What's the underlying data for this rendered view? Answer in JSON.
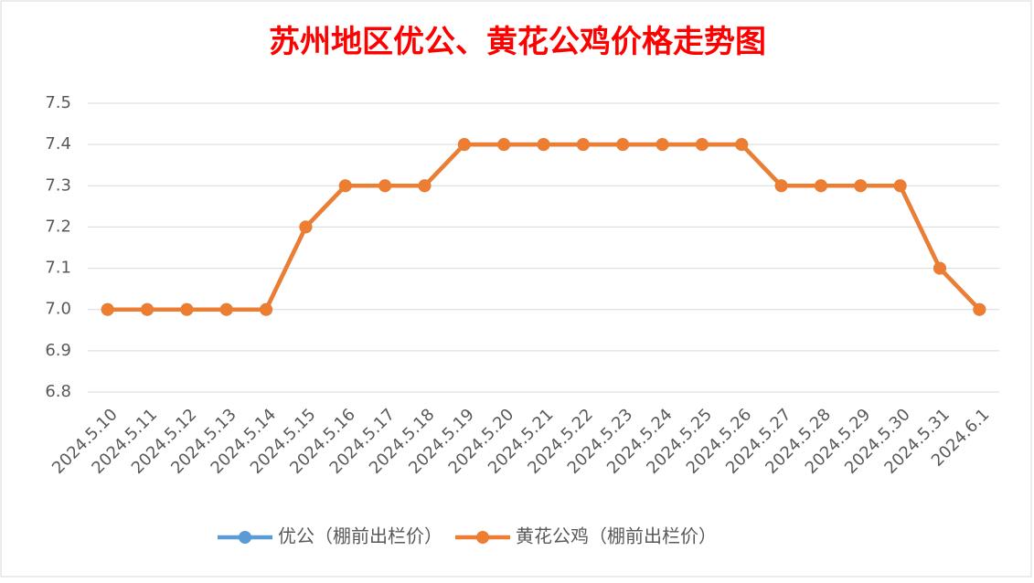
{
  "chart_data": {
    "type": "line",
    "title": "苏州地区优公、黄花公鸡价格走势图",
    "categories": [
      "2024.5.10",
      "2024.5.11",
      "2024.5.12",
      "2024.5.13",
      "2024.5.14",
      "2024.5.15",
      "2024.5.16",
      "2024.5.17",
      "2024.5.18",
      "2024.5.19",
      "2024.5.20",
      "2024.5.21",
      "2024.5.22",
      "2024.5.23",
      "2024.5.24",
      "2024.5.25",
      "2024.5.26",
      "2024.5.27",
      "2024.5.28",
      "2024.5.29",
      "2024.5.30",
      "2024.5.31",
      "2024.6.1"
    ],
    "series": [
      {
        "name": "优公（棚前出栏价）",
        "color": "#5b9bd5",
        "values": [
          7.0,
          7.0,
          7.0,
          7.0,
          7.0,
          7.2,
          7.3,
          7.3,
          7.3,
          7.4,
          7.4,
          7.4,
          7.4,
          7.4,
          7.4,
          7.4,
          7.4,
          7.3,
          7.3,
          7.3,
          7.3,
          7.1,
          7.0
        ]
      },
      {
        "name": "黄花公鸡（棚前出栏价）",
        "color": "#ed7d31",
        "values": [
          7.0,
          7.0,
          7.0,
          7.0,
          7.0,
          7.2,
          7.3,
          7.3,
          7.3,
          7.4,
          7.4,
          7.4,
          7.4,
          7.4,
          7.4,
          7.4,
          7.4,
          7.3,
          7.3,
          7.3,
          7.3,
          7.1,
          7.0
        ]
      }
    ],
    "ylim": [
      6.8,
      7.5
    ],
    "yticks": [
      6.8,
      6.9,
      {
        "value": 7.0,
        "label": "7.0"
      },
      7.1,
      7.2,
      7.3,
      7.4,
      7.5
    ],
    "grid": true,
    "legend": "bottom"
  }
}
